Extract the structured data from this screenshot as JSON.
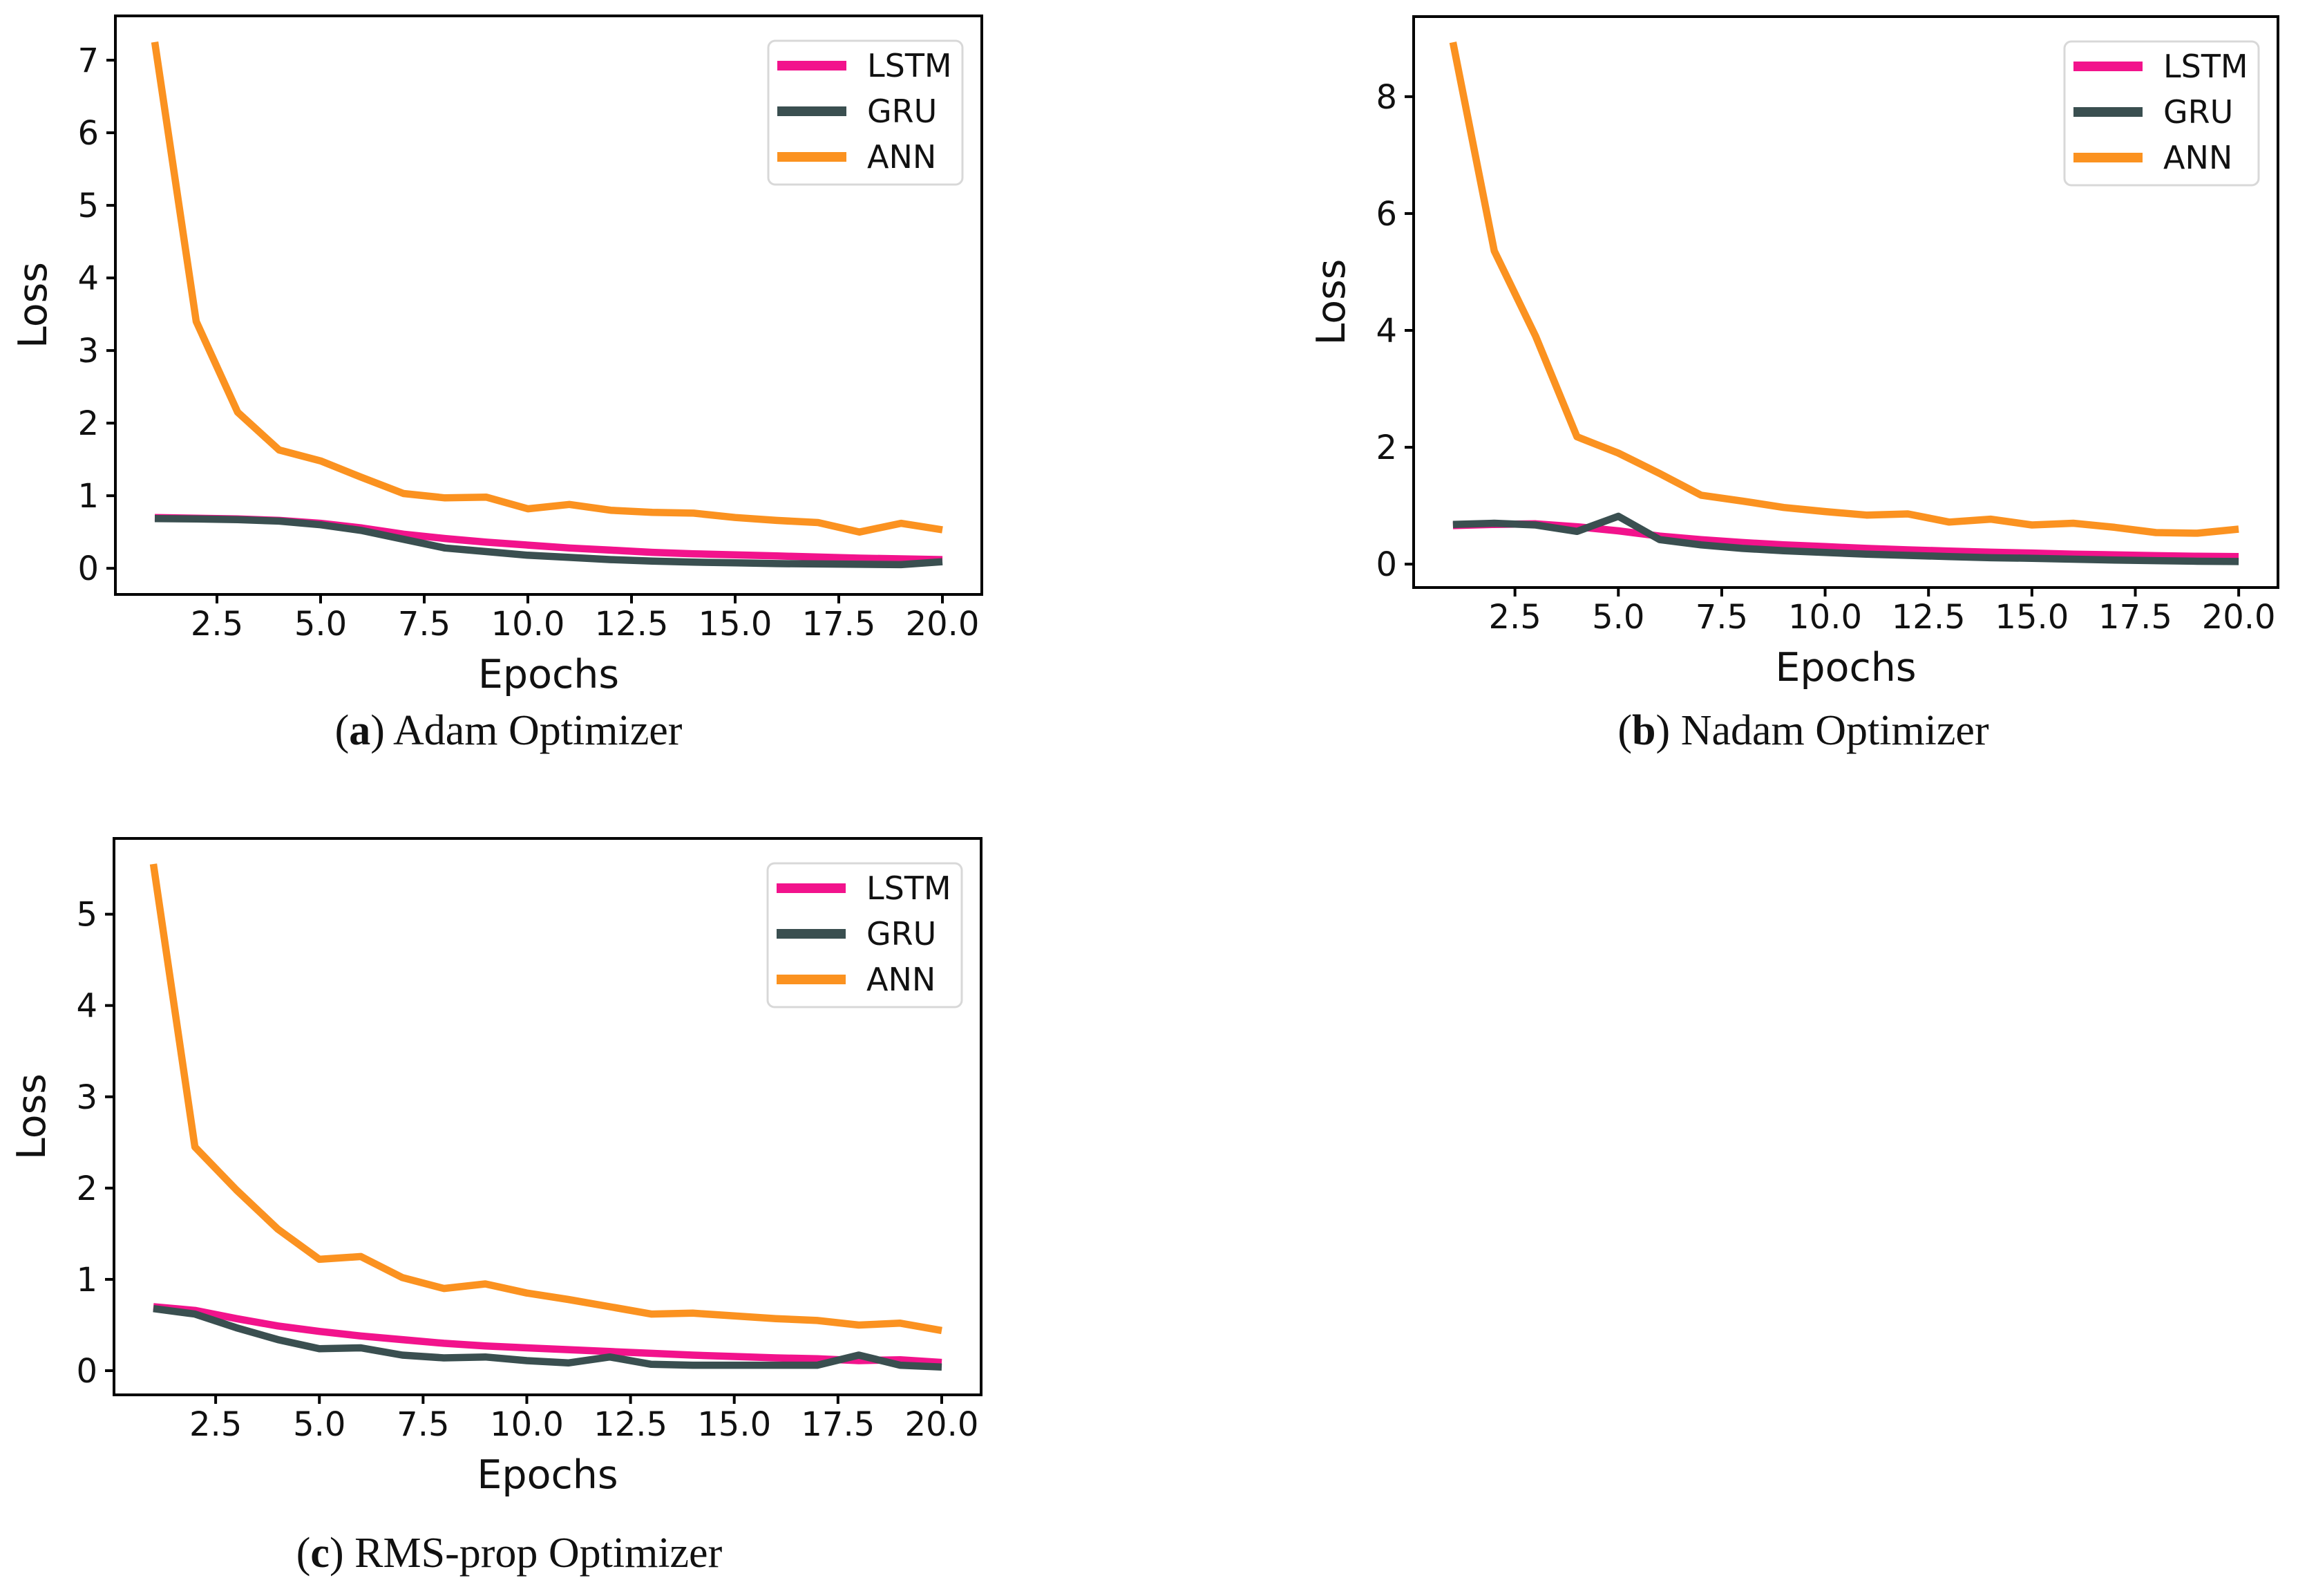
{
  "page": {
    "background": "#ffffff"
  },
  "colors": {
    "lstm": "#F2138C",
    "gru": "#3A4F50",
    "ann": "#FB9220",
    "axis": "#000000",
    "legend_border": "#D8D8D8",
    "legend_bg": "#FFFFFF",
    "text": "#111111"
  },
  "legend": {
    "entries": [
      {
        "label": "LSTM",
        "color": "lstm"
      },
      {
        "label": "GRU",
        "color": "gru"
      },
      {
        "label": "ANN",
        "color": "ann"
      }
    ],
    "position": "upper right"
  },
  "chart_data": [
    {
      "type": "line",
      "caption": {
        "open": "(",
        "letter": "a",
        "close": ")",
        "title": "Adam Optimizer"
      },
      "xlabel": "Epochs",
      "ylabel": "Loss",
      "grid": false,
      "xlim": [
        0.05,
        20.95
      ],
      "ylim": [
        -0.36,
        7.61
      ],
      "x_tick_values": [
        2.5,
        5.0,
        7.5,
        10.0,
        12.5,
        15.0,
        17.5,
        20.0
      ],
      "x_tick_labels": [
        "2.5",
        "5.0",
        "7.5",
        "10.0",
        "12.5",
        "15.0",
        "17.5",
        "20.0"
      ],
      "y_tick_values": [
        0,
        1,
        2,
        3,
        4,
        5,
        6,
        7
      ],
      "y_tick_labels": [
        "0",
        "1",
        "2",
        "3",
        "4",
        "5",
        "6",
        "7"
      ],
      "x": [
        1,
        2,
        3,
        4,
        5,
        6,
        7,
        8,
        9,
        10,
        11,
        12,
        13,
        14,
        15,
        16,
        17,
        18,
        19,
        20
      ],
      "series": [
        {
          "name": "LSTM",
          "color": "lstm",
          "values": [
            0.7,
            0.69,
            0.68,
            0.66,
            0.62,
            0.555,
            0.47,
            0.41,
            0.36,
            0.32,
            0.28,
            0.25,
            0.22,
            0.2,
            0.185,
            0.17,
            0.155,
            0.14,
            0.13,
            0.12
          ]
        },
        {
          "name": "GRU",
          "color": "gru",
          "values": [
            0.685,
            0.68,
            0.67,
            0.65,
            0.6,
            0.52,
            0.4,
            0.28,
            0.23,
            0.18,
            0.15,
            0.12,
            0.1,
            0.085,
            0.075,
            0.065,
            0.06,
            0.055,
            0.05,
            0.09
          ]
        },
        {
          "name": "ANN",
          "color": "ann",
          "values": [
            7.25,
            3.4,
            2.15,
            1.63,
            1.48,
            1.25,
            1.03,
            0.97,
            0.98,
            0.82,
            0.88,
            0.8,
            0.77,
            0.76,
            0.7,
            0.66,
            0.63,
            0.5,
            0.62,
            0.53
          ]
        }
      ]
    },
    {
      "type": "line",
      "caption": {
        "open": "(",
        "letter": "b",
        "close": ")",
        "title": "Nadam Optimizer"
      },
      "xlabel": "Epochs",
      "ylabel": "Loss",
      "grid": false,
      "xlim": [
        0.05,
        20.95
      ],
      "ylim": [
        -0.4,
        9.37
      ],
      "x_tick_values": [
        2.5,
        5.0,
        7.5,
        10.0,
        12.5,
        15.0,
        17.5,
        20.0
      ],
      "x_tick_labels": [
        "2.5",
        "5.0",
        "7.5",
        "10.0",
        "12.5",
        "15.0",
        "17.5",
        "20.0"
      ],
      "y_tick_values": [
        0,
        2,
        4,
        6,
        8
      ],
      "y_tick_labels": [
        "0",
        "2",
        "4",
        "6",
        "8"
      ],
      "x": [
        1,
        2,
        3,
        4,
        5,
        6,
        7,
        8,
        9,
        10,
        11,
        12,
        13,
        14,
        15,
        16,
        17,
        18,
        19,
        20
      ],
      "series": [
        {
          "name": "LSTM",
          "color": "lstm",
          "values": [
            0.66,
            0.68,
            0.69,
            0.64,
            0.57,
            0.48,
            0.42,
            0.37,
            0.33,
            0.3,
            0.27,
            0.245,
            0.225,
            0.205,
            0.19,
            0.17,
            0.16,
            0.145,
            0.135,
            0.13
          ]
        },
        {
          "name": "GRU",
          "color": "gru",
          "values": [
            0.68,
            0.7,
            0.67,
            0.56,
            0.82,
            0.42,
            0.33,
            0.27,
            0.23,
            0.2,
            0.17,
            0.15,
            0.13,
            0.11,
            0.1,
            0.085,
            0.07,
            0.06,
            0.05,
            0.045
          ]
        },
        {
          "name": "ANN",
          "color": "ann",
          "values": [
            8.93,
            5.36,
            3.9,
            2.18,
            1.9,
            1.55,
            1.18,
            1.08,
            0.97,
            0.9,
            0.84,
            0.86,
            0.72,
            0.77,
            0.67,
            0.7,
            0.63,
            0.54,
            0.53,
            0.6
          ]
        }
      ]
    },
    {
      "type": "line",
      "caption": {
        "open": "(",
        "letter": "c",
        "close": ")",
        "title": "RMS-prop Optimizer"
      },
      "xlabel": "Epochs",
      "ylabel": "Loss",
      "grid": false,
      "xlim": [
        0.05,
        20.95
      ],
      "ylim": [
        -0.265,
        5.83
      ],
      "x_tick_values": [
        2.5,
        5.0,
        7.5,
        10.0,
        12.5,
        15.0,
        17.5,
        20.0
      ],
      "x_tick_labels": [
        "2.5",
        "5.0",
        "7.5",
        "10.0",
        "12.5",
        "15.0",
        "17.5",
        "20.0"
      ],
      "y_tick_values": [
        0,
        1,
        2,
        3,
        4,
        5
      ],
      "y_tick_labels": [
        "0",
        "1",
        "2",
        "3",
        "4",
        "5"
      ],
      "x": [
        1,
        2,
        3,
        4,
        5,
        6,
        7,
        8,
        9,
        10,
        11,
        12,
        13,
        14,
        15,
        16,
        17,
        18,
        19,
        20
      ],
      "series": [
        {
          "name": "LSTM",
          "color": "lstm",
          "values": [
            0.7,
            0.66,
            0.57,
            0.49,
            0.43,
            0.38,
            0.34,
            0.3,
            0.27,
            0.25,
            0.23,
            0.21,
            0.19,
            0.17,
            0.155,
            0.14,
            0.13,
            0.11,
            0.12,
            0.09
          ]
        },
        {
          "name": "GRU",
          "color": "gru",
          "values": [
            0.68,
            0.62,
            0.47,
            0.34,
            0.24,
            0.25,
            0.17,
            0.14,
            0.15,
            0.11,
            0.085,
            0.15,
            0.07,
            0.06,
            0.06,
            0.06,
            0.06,
            0.17,
            0.06,
            0.04
          ]
        },
        {
          "name": "ANN",
          "color": "ann",
          "values": [
            5.55,
            2.45,
            1.98,
            1.55,
            1.22,
            1.25,
            1.02,
            0.9,
            0.95,
            0.85,
            0.78,
            0.7,
            0.62,
            0.63,
            0.6,
            0.57,
            0.55,
            0.5,
            0.52,
            0.44
          ]
        }
      ]
    }
  ]
}
